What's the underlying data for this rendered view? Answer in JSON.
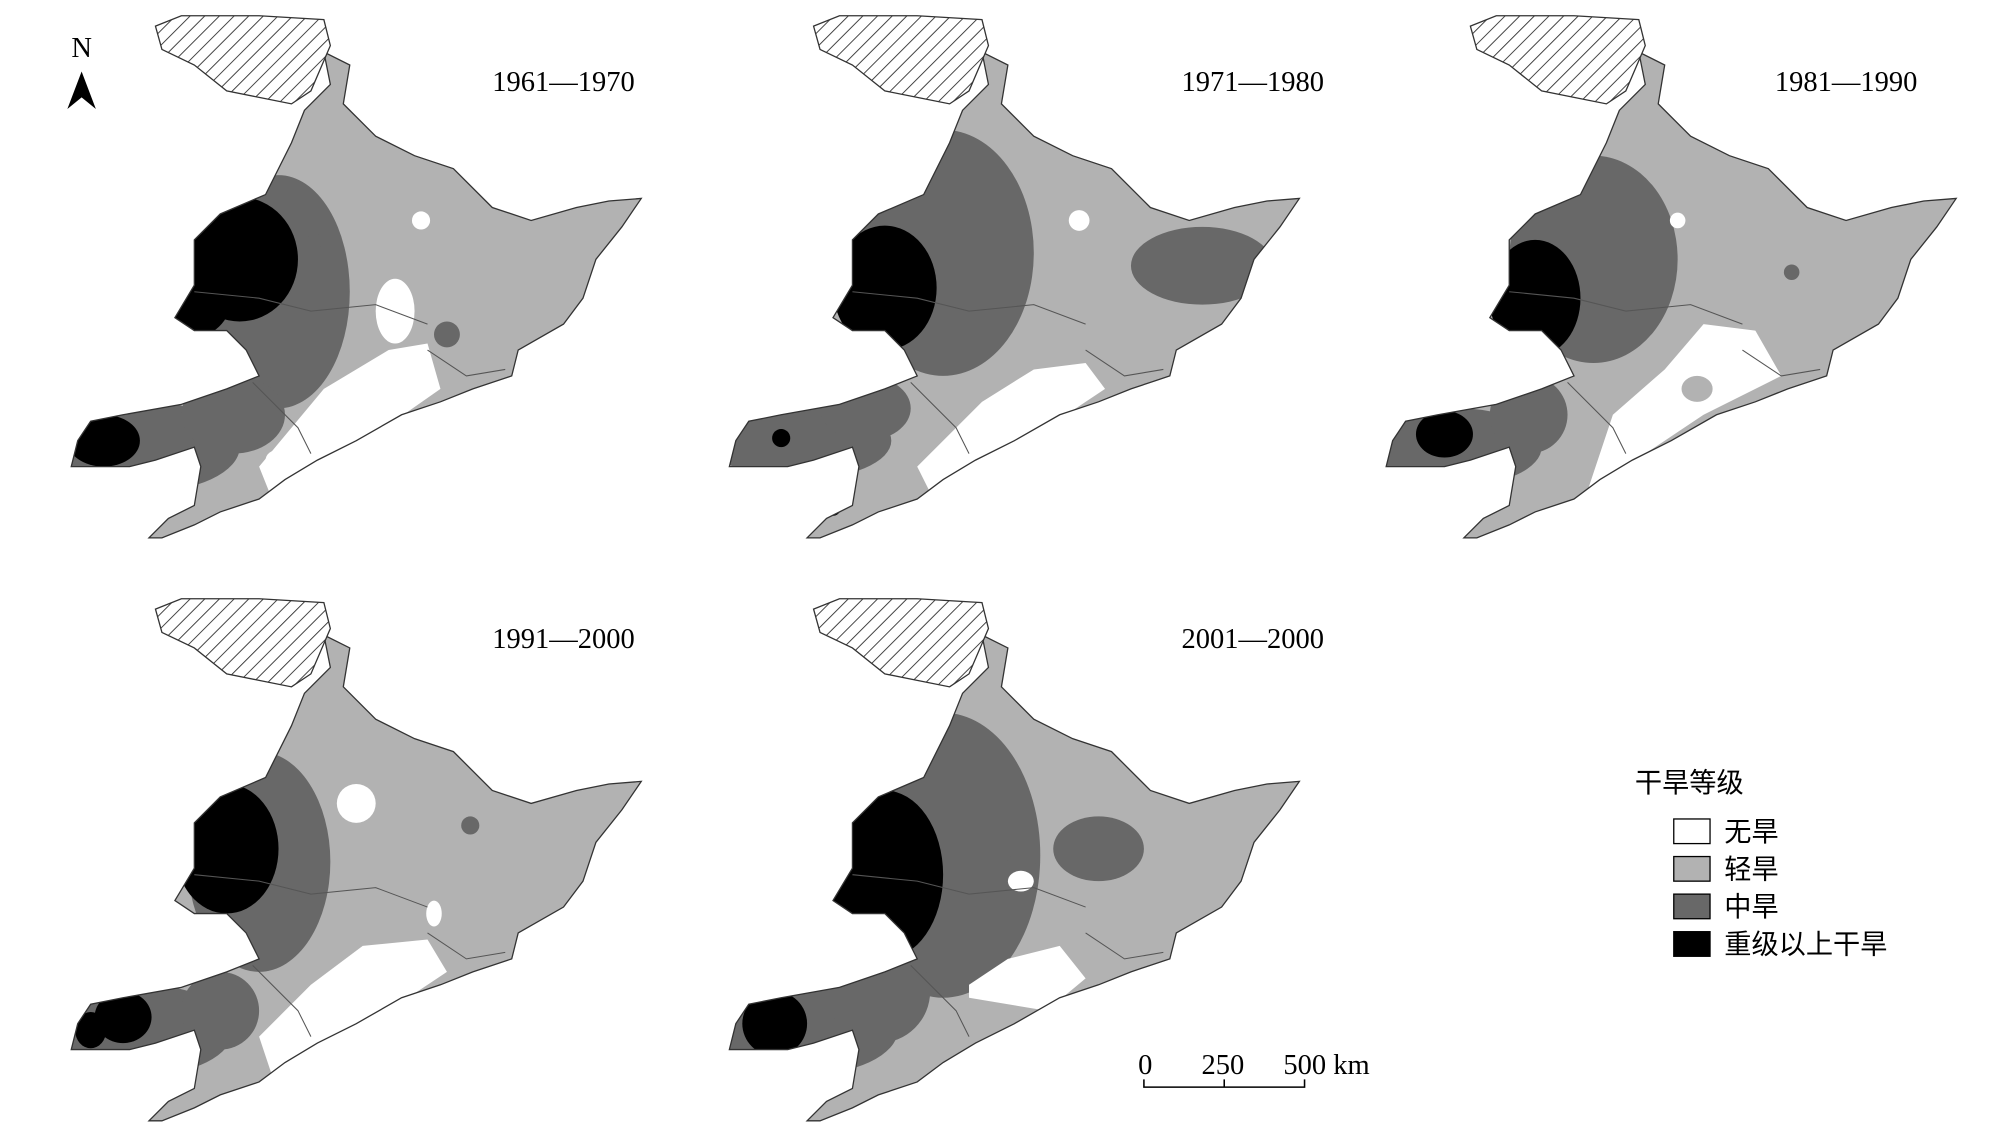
{
  "north": "N",
  "panels": [
    {
      "label": "1961—1970"
    },
    {
      "label": "1971—1980"
    },
    {
      "label": "1981—1990"
    },
    {
      "label": "1991—2000"
    },
    {
      "label": "2001—2000"
    }
  ],
  "legend": {
    "title": "干旱等级",
    "items": [
      {
        "label": "无旱",
        "color": "#ffffff"
      },
      {
        "label": "轻旱",
        "color": "#b2b2b2"
      },
      {
        "label": "中旱",
        "color": "#686868"
      },
      {
        "label": "重级以上干旱",
        "color": "#000000"
      }
    ]
  },
  "scale_bar": {
    "ticks": [
      "0",
      "250",
      "500 km"
    ]
  }
}
